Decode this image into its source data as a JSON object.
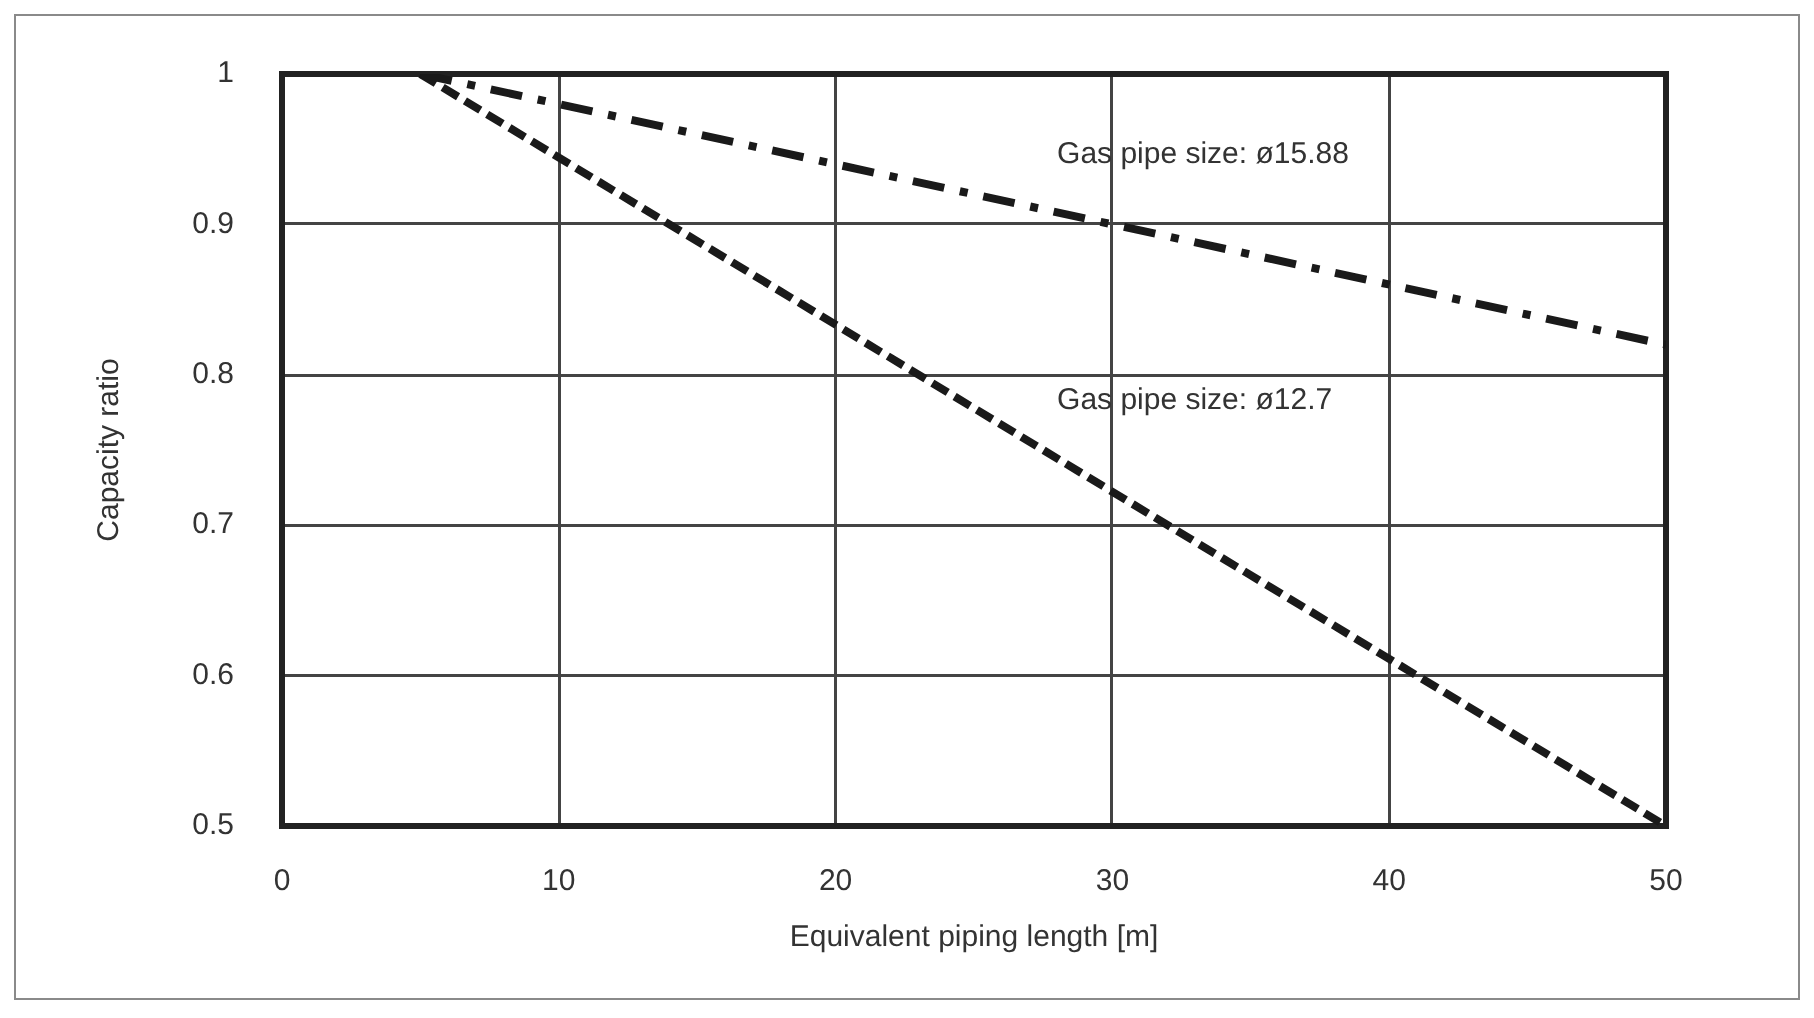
{
  "chart_data": {
    "type": "line",
    "xlabel": "Equivalent piping length [m]",
    "ylabel": "Capacity ratio",
    "x": [
      5,
      50
    ],
    "series": [
      {
        "name": "Gas pipe size: ø15.88",
        "color": "#1a1a1a",
        "values": [
          1,
          0.82
        ],
        "line_style": "dashdot"
      },
      {
        "name": "Gas pipe size: ø12.7",
        "color": "#1a1a1a",
        "values": [
          1,
          0.5
        ],
        "line_style": "dashed"
      }
    ],
    "xlim": [
      0,
      50
    ],
    "xticks": [
      0,
      10,
      20,
      30,
      40,
      50
    ],
    "ylim": [
      0.5,
      1
    ],
    "yticks": [
      0.5,
      0.6,
      0.7,
      0.8,
      0.9,
      1
    ],
    "grid": true
  }
}
